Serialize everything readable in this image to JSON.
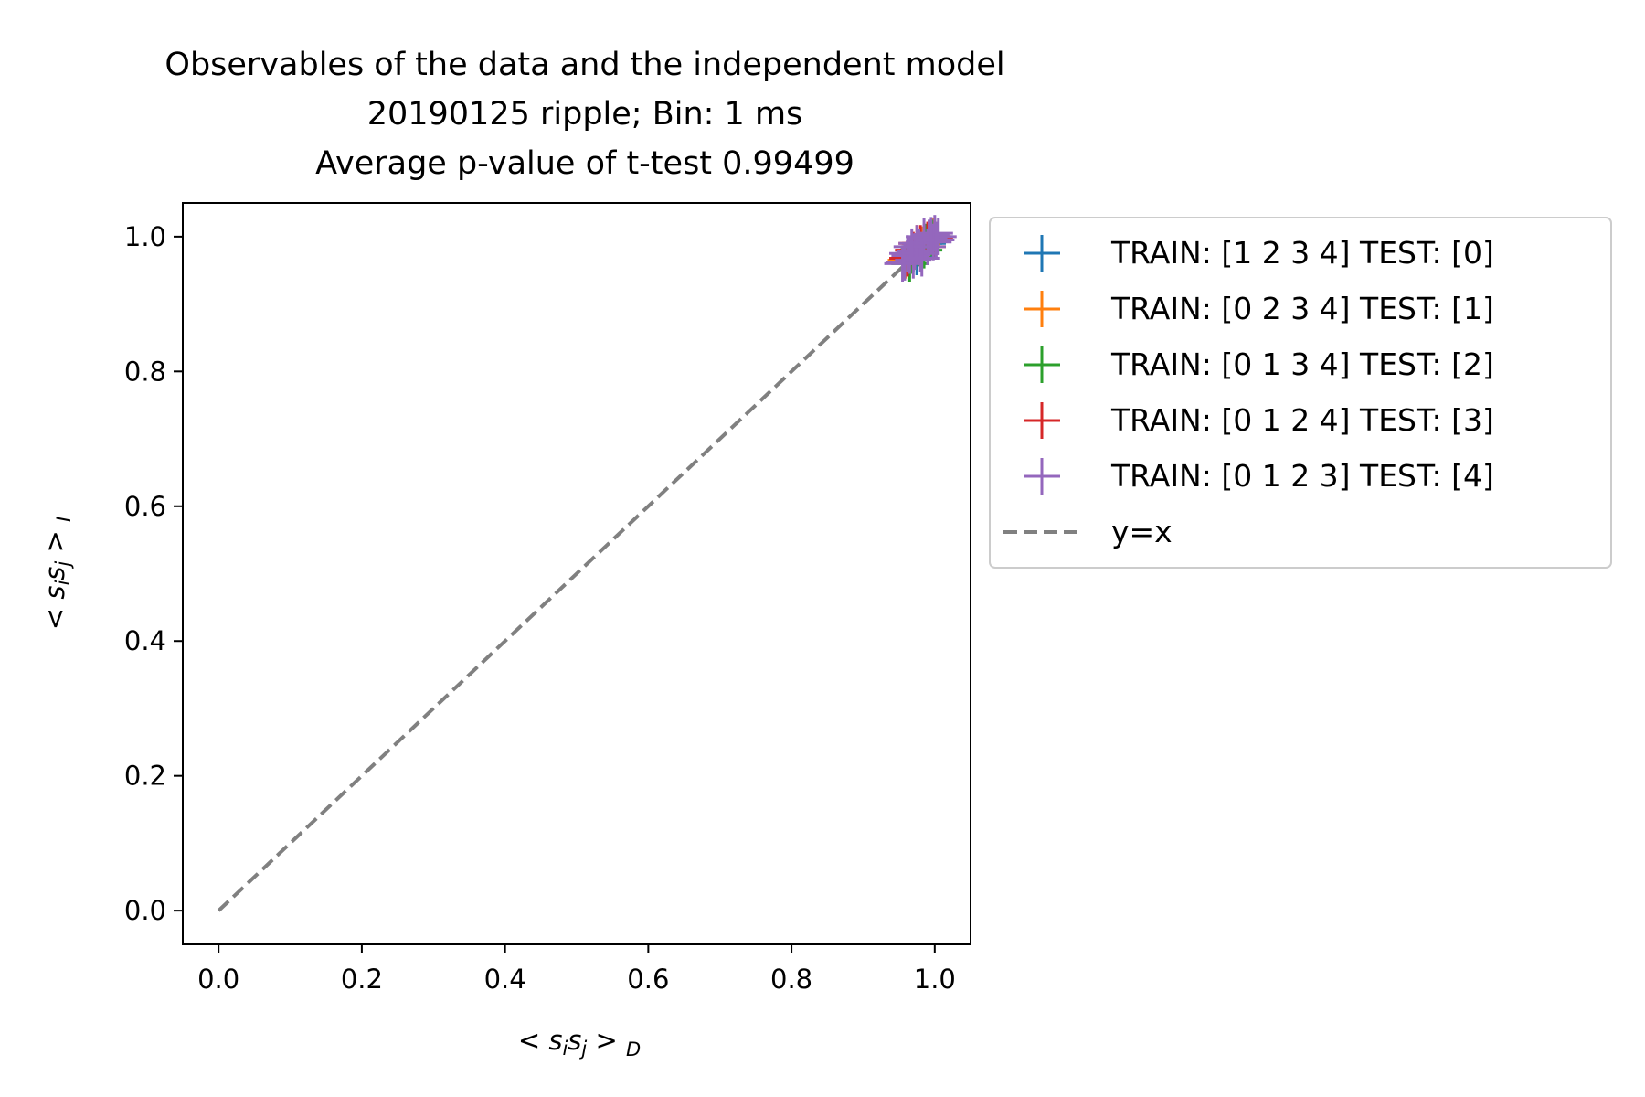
{
  "chart_data": {
    "type": "scatter",
    "title_lines": [
      "Observables of the data and the independent model",
      "20190125 ripple; Bin: 1 ms",
      "Average p-value of t-test 0.99499"
    ],
    "xlabel": "< s_i s_j >_D",
    "ylabel": "< s_i s_j >_I",
    "xlim": [
      -0.05,
      1.05
    ],
    "ylim": [
      -0.05,
      1.05
    ],
    "xticks": [
      0.0,
      0.2,
      0.4,
      0.6,
      0.8,
      1.0
    ],
    "xtick_labels": [
      "0.0",
      "0.2",
      "0.4",
      "0.6",
      "0.8",
      "1.0"
    ],
    "yticks": [
      0.0,
      0.2,
      0.4,
      0.6,
      0.8,
      1.0
    ],
    "ytick_labels": [
      "0.0",
      "0.2",
      "0.4",
      "0.6",
      "0.8",
      "1.0"
    ],
    "grid": false,
    "legend_placement": "outside-upper-right",
    "marker": "plus",
    "series": [
      {
        "name": "TRAIN: [1 2 3 4] TEST: [0]",
        "color": "#1f77b4",
        "points": [
          [
            0.97,
            0.975
          ],
          [
            0.98,
            0.985
          ],
          [
            0.99,
            0.99
          ],
          [
            1.0,
            1.0
          ],
          [
            0.985,
            0.99
          ],
          [
            0.975,
            0.97
          ]
        ]
      },
      {
        "name": "TRAIN: [0 2 3 4] TEST: [1]",
        "color": "#ff7f0e",
        "points": [
          [
            0.972,
            0.978
          ],
          [
            0.982,
            0.988
          ],
          [
            0.992,
            0.995
          ],
          [
            0.998,
            1.0
          ],
          [
            0.96,
            0.965
          ],
          [
            0.99,
            0.985
          ]
        ]
      },
      {
        "name": "TRAIN: [0 1 3 4] TEST: [2]",
        "color": "#2ca02c",
        "points": [
          [
            0.968,
            0.972
          ],
          [
            0.978,
            0.983
          ],
          [
            0.988,
            0.992
          ],
          [
            0.996,
            0.998
          ],
          [
            0.965,
            0.96
          ],
          [
            0.985,
            0.98
          ]
        ]
      },
      {
        "name": "TRAIN: [0 1 2 4] TEST: [3]",
        "color": "#d62728",
        "points": [
          [
            0.97,
            0.98
          ],
          [
            0.98,
            0.99
          ],
          [
            0.99,
            0.995
          ],
          [
            1.0,
            0.998
          ],
          [
            0.962,
            0.968
          ],
          [
            0.975,
            0.99
          ]
        ]
      },
      {
        "name": "TRAIN: [0 1 2 3] TEST: [4]",
        "color": "#9467bd",
        "points": [
          [
            0.958,
            0.962
          ],
          [
            0.965,
            0.972
          ],
          [
            0.972,
            0.978
          ],
          [
            0.978,
            0.985
          ],
          [
            0.985,
            0.992
          ],
          [
            0.992,
            0.998
          ],
          [
            1.0,
            1.005
          ],
          [
            1.005,
            1.0
          ],
          [
            0.962,
            0.975
          ],
          [
            0.97,
            0.965
          ],
          [
            0.98,
            0.975
          ],
          [
            0.99,
            0.985
          ],
          [
            0.998,
            0.992
          ],
          [
            0.975,
            0.99
          ],
          [
            0.985,
            1.0
          ],
          [
            0.955,
            0.96
          ],
          [
            0.995,
            1.002
          ],
          [
            0.968,
            0.985
          ],
          [
            0.982,
            0.968
          ],
          [
            1.002,
            0.995
          ]
        ]
      }
    ],
    "reference_line": {
      "name": "y=x",
      "color": "#808080",
      "from": [
        0.0,
        0.0
      ],
      "to": [
        1.0,
        1.0
      ]
    }
  }
}
